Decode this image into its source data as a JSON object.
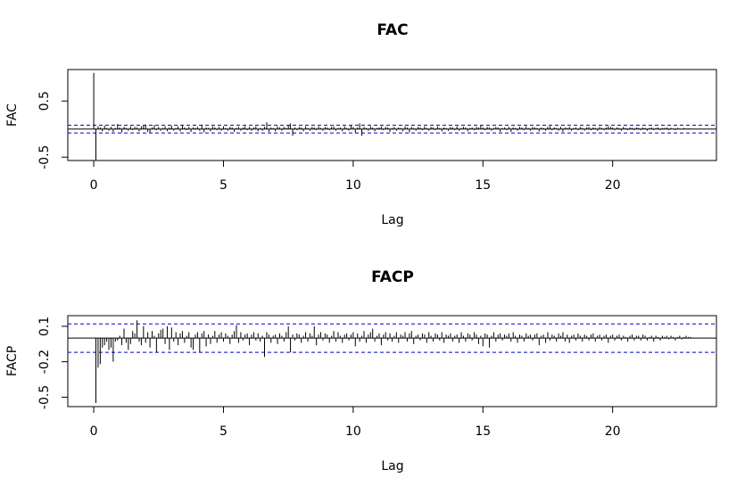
{
  "chart_data": [
    {
      "type": "stem",
      "title": "FAC",
      "x_label": "Lag",
      "y_label": "FAC",
      "color": "#000000",
      "ci": 0.07,
      "ci_color": "#0000cd",
      "xlim": [
        -1,
        24
      ],
      "ylim": [
        -0.56,
        1.06
      ],
      "xticks": [
        0,
        5,
        10,
        15,
        20
      ],
      "yticks": [
        -0.5,
        0.5
      ],
      "x": [
        0,
        0.083,
        0.167,
        0.25,
        0.333,
        0.417,
        0.5,
        0.583,
        0.667,
        0.75,
        0.833,
        0.917,
        1,
        1.083,
        1.167,
        1.25,
        1.333,
        1.417,
        1.5,
        1.583,
        1.667,
        1.75,
        1.833,
        1.917,
        2,
        2.083,
        2.167,
        2.25,
        2.333,
        2.417,
        2.5,
        2.583,
        2.667,
        2.75,
        2.833,
        2.917,
        3,
        3.083,
        3.167,
        3.25,
        3.333,
        3.417,
        3.5,
        3.583,
        3.667,
        3.75,
        3.833,
        3.917,
        4,
        4.083,
        4.167,
        4.25,
        4.333,
        4.417,
        4.5,
        4.583,
        4.667,
        4.75,
        4.833,
        4.917,
        5,
        5.083,
        5.167,
        5.25,
        5.333,
        5.417,
        5.5,
        5.583,
        5.667,
        5.75,
        5.833,
        5.917,
        6,
        6.083,
        6.167,
        6.25,
        6.333,
        6.417,
        6.5,
        6.583,
        6.667,
        6.75,
        6.833,
        6.917,
        7,
        7.083,
        7.167,
        7.25,
        7.333,
        7.417,
        7.5,
        7.583,
        7.667,
        7.75,
        7.833,
        7.917,
        8,
        8.083,
        8.167,
        8.25,
        8.333,
        8.417,
        8.5,
        8.583,
        8.667,
        8.75,
        8.833,
        8.917,
        9,
        9.083,
        9.167,
        9.25,
        9.333,
        9.417,
        9.5,
        9.583,
        9.667,
        9.75,
        9.833,
        9.917,
        10,
        10.083,
        10.167,
        10.25,
        10.333,
        10.417,
        10.5,
        10.583,
        10.667,
        10.75,
        10.833,
        10.917,
        11,
        11.083,
        11.167,
        11.25,
        11.333,
        11.417,
        11.5,
        11.583,
        11.667,
        11.75,
        11.833,
        11.917,
        12,
        12.083,
        12.167,
        12.25,
        12.333,
        12.417,
        12.5,
        12.583,
        12.667,
        12.75,
        12.833,
        12.917,
        13,
        13.083,
        13.167,
        13.25,
        13.333,
        13.417,
        13.5,
        13.583,
        13.667,
        13.75,
        13.833,
        13.917,
        14,
        14.083,
        14.167,
        14.25,
        14.333,
        14.417,
        14.5,
        14.583,
        14.667,
        14.75,
        14.833,
        14.917,
        15,
        15.083,
        15.167,
        15.25,
        15.333,
        15.417,
        15.5,
        15.583,
        15.667,
        15.75,
        15.833,
        15.917,
        16,
        16.083,
        16.167,
        16.25,
        16.333,
        16.417,
        16.5,
        16.583,
        16.667,
        16.75,
        16.833,
        16.917,
        17,
        17.083,
        17.167,
        17.25,
        17.333,
        17.417,
        17.5,
        17.583,
        17.667,
        17.75,
        17.833,
        17.917,
        18,
        18.083,
        18.167,
        18.25,
        18.333,
        18.417,
        18.5,
        18.583,
        18.667,
        18.75,
        18.833,
        18.917,
        19,
        19.083,
        19.167,
        19.25,
        19.333,
        19.417,
        19.5,
        19.583,
        19.667,
        19.75,
        19.833,
        19.917,
        20,
        20.083,
        20.167,
        20.25,
        20.333,
        20.417,
        20.5,
        20.583,
        20.667,
        20.75,
        20.833,
        20.917,
        21,
        21.083,
        21.167,
        21.25,
        21.333,
        21.417,
        21.5,
        21.583,
        21.667,
        21.75,
        21.833,
        21.917,
        22,
        22.083,
        22.167,
        22.25,
        22.333,
        22.417,
        22.5,
        22.583,
        22.667,
        22.75,
        22.833,
        22.917,
        23
      ],
      "values": [
        1,
        -0.55,
        0.05,
        0.03,
        -0.04,
        0.06,
        0.02,
        -0.03,
        0.04,
        -0.05,
        0.02,
        0.09,
        0.03,
        -0.06,
        0.04,
        0.02,
        -0.03,
        0.05,
        -0.02,
        0.04,
        0.03,
        -0.04,
        0.05,
        0.06,
        0.08,
        -0.05,
        -0.06,
        0.03,
        0.07,
        -0.02,
        0.04,
        -0.03,
        0.02,
        0.05,
        -0.04,
        0.03,
        0.06,
        -0.03,
        0.02,
        0.05,
        -0.04,
        0.07,
        0.03,
        -0.02,
        0.04,
        -0.05,
        0.03,
        0.02,
        0.04,
        -0.03,
        0.08,
        -0.06,
        0.03,
        0.02,
        -0.04,
        0.05,
        0.03,
        -0.02,
        0.04,
        -0.03,
        0.05,
        0.02,
        -0.03,
        0.04,
        0.03,
        -0.05,
        0.02,
        0.04,
        -0.03,
        0.03,
        0.05,
        -0.02,
        0.04,
        -0.03,
        0.03,
        0.05,
        -0.04,
        0.02,
        -0.03,
        0.04,
        0.12,
        -0.05,
        0.03,
        0.02,
        -0.04,
        0.05,
        0.03,
        -0.03,
        0.04,
        0.02,
        0.06,
        0.1,
        -0.12,
        0.03,
        -0.02,
        0.04,
        0.03,
        -0.04,
        0.05,
        0.02,
        -0.03,
        0.04,
        0.03,
        -0.02,
        0.05,
        0.02,
        -0.03,
        0.04,
        0.03,
        -0.02,
        0.04,
        0.05,
        -0.03,
        0.02,
        0.03,
        -0.04,
        0.05,
        0.02,
        -0.03,
        0.06,
        0.04,
        -0.06,
        0.03,
        0.1,
        -0.12,
        0.04,
        0.02,
        -0.03,
        0.05,
        0.03,
        -0.04,
        0.02,
        0.03,
        0.05,
        -0.02,
        0.04,
        0.03,
        -0.05,
        0.02,
        0.04,
        -0.03,
        0.03,
        0.02,
        -0.04,
        0.05,
        0.03,
        -0.06,
        0.04,
        0.02,
        -0.03,
        0.04,
        0.03,
        -0.02,
        0.05,
        0.02,
        -0.03,
        0.04,
        0.03,
        -0.02,
        0.05,
        0.02,
        -0.04,
        0.03,
        0.02,
        -0.03,
        0.04,
        0.03,
        -0.02,
        0.05,
        -0.03,
        0.02,
        0.04,
        0.03,
        -0.04,
        0.02,
        0.03,
        -0.02,
        0.04,
        0.03,
        0.06,
        0.03,
        -0.02,
        0.04,
        0.03,
        -0.03,
        0.02,
        0.04,
        0.03,
        -0.05,
        0.02,
        0.03,
        -0.02,
        0.04,
        -0.05,
        0.03,
        0.02,
        -0.03,
        0.04,
        0.03,
        -0.02,
        0.05,
        0.02,
        -0.03,
        0.04,
        0.03,
        0.02,
        -0.04,
        0.03,
        0.02,
        -0.03,
        0.04,
        0.05,
        -0.02,
        0.03,
        0.02,
        -0.03,
        0.04,
        -0.05,
        0.03,
        0.02,
        0.04,
        -0.03,
        0.02,
        0.03,
        -0.02,
        0.04,
        0.02,
        -0.03,
        0.03,
        0.04,
        -0.02,
        0.03,
        0.02,
        -0.03,
        0.04,
        0.02,
        -0.02,
        0.03,
        0.05,
        0.04,
        0.03,
        -0.02,
        0.03,
        0.02,
        -0.03,
        0.04,
        0.02,
        -0.02,
        0.03,
        0.02,
        -0.02,
        0.03,
        0.02,
        -0.02,
        0.03,
        0.02,
        -0.03,
        0.02,
        0.03,
        -0.02,
        0.02,
        0.03,
        -0.02,
        0.02,
        0.02,
        0.03,
        -0.02,
        0.02,
        0.01,
        -0.02,
        0.02,
        0.01,
        -0.01,
        0.02,
        0.01,
        0.01,
        0.01
      ]
    },
    {
      "type": "stem",
      "title": "FACP",
      "x_label": "Lag",
      "y_label": "FACP",
      "color": "#000000",
      "ci": 0.12,
      "ci_color": "#0000cd",
      "xlim": [
        -1,
        24
      ],
      "ylim": [
        -0.58,
        0.19
      ],
      "xticks": [
        0,
        5,
        10,
        15,
        20
      ],
      "yticks": [
        -0.5,
        -0.2,
        0.1
      ],
      "x": [
        0.083,
        0.167,
        0.25,
        0.333,
        0.417,
        0.5,
        0.583,
        0.667,
        0.75,
        0.833,
        0.917,
        1,
        1.083,
        1.167,
        1.25,
        1.333,
        1.417,
        1.5,
        1.583,
        1.667,
        1.75,
        1.833,
        1.917,
        2,
        2.083,
        2.167,
        2.25,
        2.333,
        2.417,
        2.5,
        2.583,
        2.667,
        2.75,
        2.833,
        2.917,
        3,
        3.083,
        3.167,
        3.25,
        3.333,
        3.417,
        3.5,
        3.583,
        3.667,
        3.75,
        3.833,
        3.917,
        4,
        4.083,
        4.167,
        4.25,
        4.333,
        4.417,
        4.5,
        4.583,
        4.667,
        4.75,
        4.833,
        4.917,
        5,
        5.083,
        5.167,
        5.25,
        5.333,
        5.417,
        5.5,
        5.583,
        5.667,
        5.75,
        5.833,
        5.917,
        6,
        6.083,
        6.167,
        6.25,
        6.333,
        6.417,
        6.5,
        6.583,
        6.667,
        6.75,
        6.833,
        6.917,
        7,
        7.083,
        7.167,
        7.25,
        7.333,
        7.417,
        7.5,
        7.583,
        7.667,
        7.75,
        7.833,
        7.917,
        8,
        8.083,
        8.167,
        8.25,
        8.333,
        8.417,
        8.5,
        8.583,
        8.667,
        8.75,
        8.833,
        8.917,
        9,
        9.083,
        9.167,
        9.25,
        9.333,
        9.417,
        9.5,
        9.583,
        9.667,
        9.75,
        9.833,
        9.917,
        10,
        10.083,
        10.167,
        10.25,
        10.333,
        10.417,
        10.5,
        10.583,
        10.667,
        10.75,
        10.833,
        10.917,
        11,
        11.083,
        11.167,
        11.25,
        11.333,
        11.417,
        11.5,
        11.583,
        11.667,
        11.75,
        11.833,
        11.917,
        12,
        12.083,
        12.167,
        12.25,
        12.333,
        12.417,
        12.5,
        12.583,
        12.667,
        12.75,
        12.833,
        12.917,
        13,
        13.083,
        13.167,
        13.25,
        13.333,
        13.417,
        13.5,
        13.583,
        13.667,
        13.75,
        13.833,
        13.917,
        14,
        14.083,
        14.167,
        14.25,
        14.333,
        14.417,
        14.5,
        14.583,
        14.667,
        14.75,
        14.833,
        14.917,
        15,
        15.083,
        15.167,
        15.25,
        15.333,
        15.417,
        15.5,
        15.583,
        15.667,
        15.75,
        15.833,
        15.917,
        16,
        16.083,
        16.167,
        16.25,
        16.333,
        16.417,
        16.5,
        16.583,
        16.667,
        16.75,
        16.833,
        16.917,
        17,
        17.083,
        17.167,
        17.25,
        17.333,
        17.417,
        17.5,
        17.583,
        17.667,
        17.75,
        17.833,
        17.917,
        18,
        18.083,
        18.167,
        18.25,
        18.333,
        18.417,
        18.5,
        18.583,
        18.667,
        18.75,
        18.833,
        18.917,
        19,
        19.083,
        19.167,
        19.25,
        19.333,
        19.417,
        19.5,
        19.583,
        19.667,
        19.75,
        19.833,
        19.917,
        20,
        20.083,
        20.167,
        20.25,
        20.333,
        20.417,
        20.5,
        20.583,
        20.667,
        20.75,
        20.833,
        20.917,
        21,
        21.083,
        21.167,
        21.25,
        21.333,
        21.417,
        21.5,
        21.583,
        21.667,
        21.75,
        21.833,
        21.917,
        22,
        22.083,
        22.167,
        22.25,
        22.333,
        22.417,
        22.5,
        22.583,
        22.667,
        22.75,
        22.833,
        22.917,
        23
      ],
      "values": [
        -0.55,
        -0.25,
        -0.22,
        -0.08,
        -0.06,
        -0.03,
        -0.1,
        -0.08,
        -0.2,
        -0.03,
        -0.02,
        0.02,
        -0.06,
        0.08,
        -0.04,
        -0.1,
        -0.05,
        0.06,
        0.04,
        0.15,
        -0.03,
        -0.06,
        0.1,
        -0.04,
        0.05,
        -0.08,
        0.06,
        0.02,
        -0.12,
        0.04,
        0.07,
        0.08,
        -0.05,
        0.1,
        -0.1,
        0.09,
        -0.03,
        0.05,
        -0.06,
        0.04,
        0.06,
        -0.04,
        0.02,
        0.05,
        -0.08,
        -0.1,
        0.03,
        0.05,
        -0.12,
        0.04,
        0.06,
        -0.07,
        0.03,
        -0.05,
        0.02,
        0.06,
        -0.04,
        0.03,
        0.05,
        -0.03,
        0.04,
        0.02,
        -0.05,
        0.03,
        0.06,
        0.11,
        -0.04,
        0.05,
        -0.02,
        0.03,
        0.04,
        -0.06,
        0.03,
        0.05,
        -0.02,
        0.04,
        -0.03,
        0.02,
        -0.16,
        0.05,
        0.03,
        -0.04,
        0.02,
        0.03,
        -0.05,
        0.04,
        0.02,
        -0.03,
        0.05,
        0.1,
        -0.12,
        0.03,
        -0.02,
        0.04,
        0.03,
        -0.04,
        0.02,
        0.05,
        -0.03,
        0.04,
        0.02,
        0.1,
        -0.06,
        0.03,
        0.05,
        -0.02,
        0.04,
        0.03,
        -0.04,
        0.02,
        0.06,
        -0.03,
        0.05,
        0.02,
        -0.04,
        0.03,
        0.04,
        -0.02,
        0.03,
        0.05,
        -0.07,
        0.04,
        -0.03,
        0.02,
        0.06,
        -0.04,
        0.03,
        0.05,
        0.08,
        -0.03,
        0.02,
        0.04,
        -0.06,
        0.03,
        0.05,
        -0.02,
        0.04,
        -0.03,
        0.02,
        0.05,
        -0.04,
        0.03,
        0.02,
        0.05,
        -0.03,
        0.04,
        0.06,
        -0.05,
        0.02,
        0.03,
        -0.02,
        0.04,
        0.03,
        -0.04,
        0.05,
        0.02,
        -0.03,
        0.04,
        0.03,
        -0.02,
        0.05,
        -0.04,
        0.03,
        0.02,
        0.04,
        -0.03,
        0.02,
        0.03,
        -0.04,
        0.05,
        0.02,
        -0.03,
        0.04,
        0.03,
        -0.02,
        0.05,
        0.03,
        -0.05,
        0.02,
        -0.07,
        0.04,
        0.03,
        -0.08,
        0.02,
        0.05,
        -0.03,
        0.03,
        0.04,
        -0.02,
        0.03,
        0.02,
        0.04,
        -0.03,
        0.05,
        0.02,
        -0.04,
        0.03,
        0.02,
        -0.03,
        0.04,
        0.02,
        0.03,
        -0.02,
        0.03,
        0.04,
        -0.06,
        0.02,
        0.03,
        -0.04,
        0.05,
        -0.02,
        0.03,
        0.02,
        -0.03,
        0.04,
        0.02,
        0.05,
        -0.03,
        0.03,
        -0.04,
        0.02,
        0.03,
        -0.02,
        0.04,
        0.02,
        -0.03,
        0.03,
        0.02,
        -0.02,
        0.03,
        0.04,
        -0.03,
        0.02,
        0.03,
        -0.02,
        0.02,
        0.03,
        -0.04,
        0.02,
        0.03,
        -0.02,
        0.02,
        0.03,
        -0.02,
        0.02,
        0.01,
        -0.03,
        0.02,
        0.03,
        -0.02,
        0.02,
        0.02,
        -0.02,
        0.03,
        0.02,
        -0.02,
        0.01,
        0.02,
        -0.03,
        0.02,
        0.01,
        -0.02,
        0.02,
        0.01,
        0.02,
        -0.01,
        0.02,
        0.01,
        -0.02,
        0.01,
        0.02,
        -0.01,
        0.01,
        0.02,
        0.01,
        0.01
      ]
    }
  ]
}
